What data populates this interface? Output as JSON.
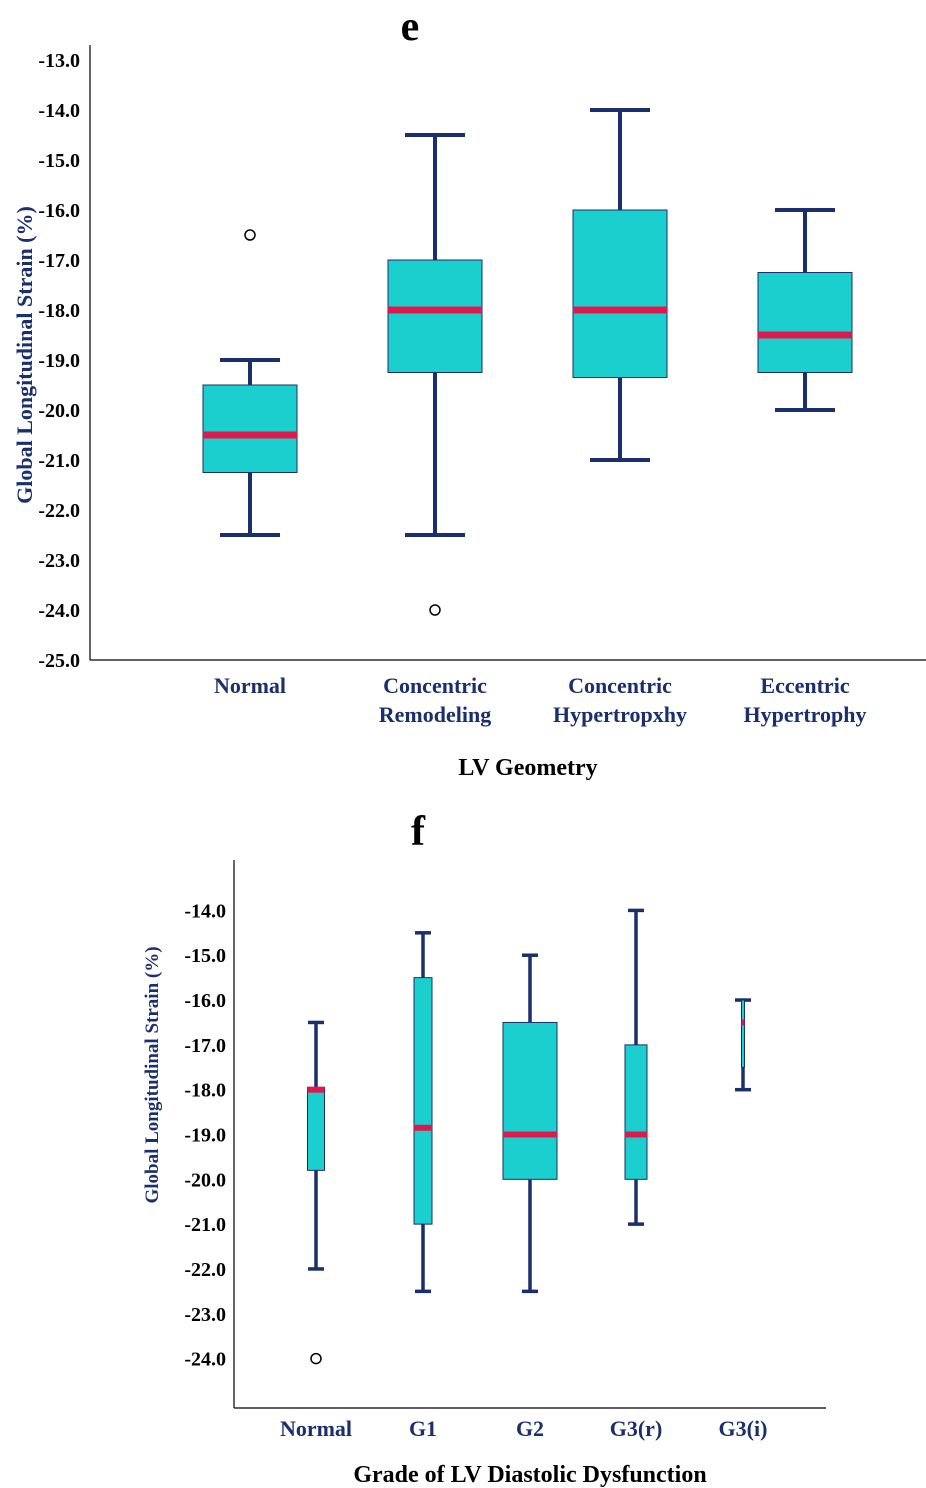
{
  "colors": {
    "box_fill": "#1ccfcf",
    "median": "#e0194d",
    "whisker": "#1a2f6b",
    "axis": "#000000",
    "label": "#1a2f6b"
  },
  "chart_data": [
    {
      "type": "box",
      "panel_label": "e",
      "ylabel": "Global Longitudinal Strain (%)",
      "xlabel": "LV Geometry",
      "ylim": [
        -25.0,
        -13.0
      ],
      "yticks": [
        "-13.0",
        "-14.0",
        "-15.0",
        "-16.0",
        "-17.0",
        "-18.0",
        "-19.0",
        "-20.0",
        "-21.0",
        "-22.0",
        "-23.0",
        "-24.0",
        "-25.0"
      ],
      "categories": [
        [
          "Normal"
        ],
        [
          "Concentric",
          "Remodeling"
        ],
        [
          "Concentric",
          "Hypertropxhy"
        ],
        [
          "Eccentric",
          "Hypertrophy"
        ]
      ],
      "boxes": [
        {
          "min": -22.5,
          "q1": -21.25,
          "median": -20.5,
          "q3": -19.5,
          "max": -19.0,
          "outliers": [
            -16.5
          ]
        },
        {
          "min": -22.5,
          "q1": -19.25,
          "median": -18.0,
          "q3": -17.0,
          "max": -14.5,
          "outliers": [
            -24.0
          ]
        },
        {
          "min": -21.0,
          "q1": -19.35,
          "median": -18.0,
          "q3": -16.0,
          "max": -14.0,
          "outliers": []
        },
        {
          "min": -20.0,
          "q1": -19.25,
          "median": -18.5,
          "q3": -17.25,
          "max": -16.0,
          "outliers": []
        }
      ]
    },
    {
      "type": "box",
      "panel_label": "f",
      "ylabel": "Global Longitudinal Strain (%)",
      "xlabel": "Grade of LV Diastolic Dysfunction",
      "ylim": [
        -24.5,
        -13.5
      ],
      "yticks": [
        "-14.0",
        "-15.0",
        "-16.0",
        "-17.0",
        "-18.0",
        "-19.0",
        "-20.0",
        "-21.0",
        "-22.0",
        "-23.0",
        "-24.0"
      ],
      "categories": [
        [
          "Normal"
        ],
        [
          "G1"
        ],
        [
          "G2"
        ],
        [
          "G3(r)"
        ],
        [
          "G3(i)"
        ]
      ],
      "boxes": [
        {
          "min": -22.0,
          "q1": -19.8,
          "median": -18.0,
          "q3": -17.95,
          "max": -16.5,
          "outliers": [
            -24.0
          ]
        },
        {
          "min": -22.5,
          "q1": -21.0,
          "median": -18.85,
          "q3": -15.5,
          "max": -14.5,
          "outliers": []
        },
        {
          "min": -22.5,
          "q1": -20.0,
          "median": -19.0,
          "q3": -16.5,
          "max": -15.0,
          "outliers": []
        },
        {
          "min": -21.0,
          "q1": -20.0,
          "median": -19.0,
          "q3": -17.0,
          "max": -14.0,
          "outliers": []
        },
        {
          "min": -18.0,
          "q1": -17.5,
          "median": -16.5,
          "q3": -16.0,
          "max": -16.0,
          "outliers": []
        }
      ]
    }
  ]
}
